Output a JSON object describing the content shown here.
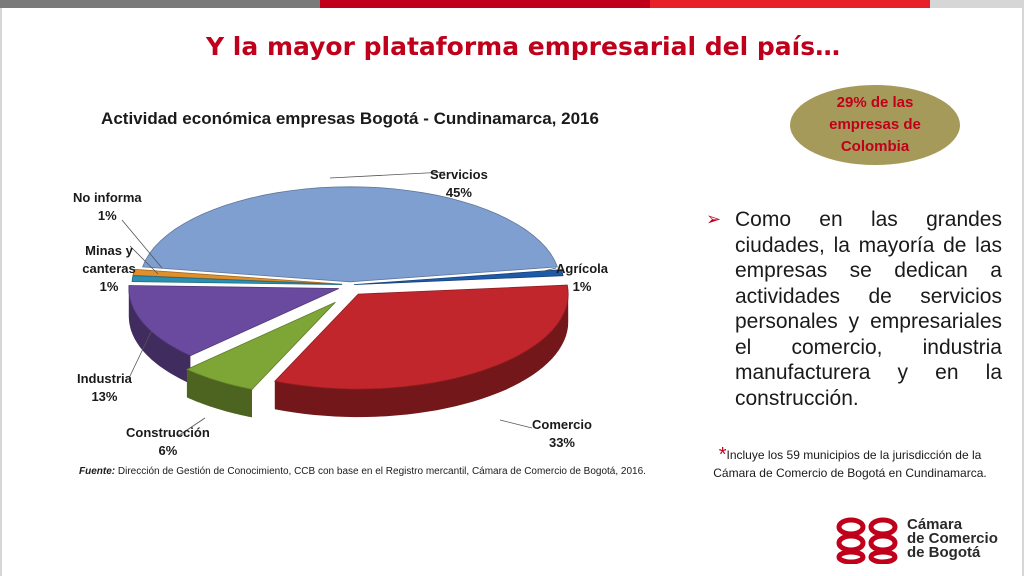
{
  "slide": {
    "title": "Y la mayor plataforma empresarial del país…",
    "topbar_colors": [
      "#7d7d7d",
      "#c0001b",
      "#e02020",
      "#d6d6d6"
    ]
  },
  "badge": {
    "text": "29%  de las empresas de Colombia"
  },
  "bullet": {
    "text": "Como en las grandes ciudades, la mayoría de las empresas se dedican a actividades de servicios personales y empresariales el comercio, industria manufacturera y en la construcción."
  },
  "note": {
    "star": "*",
    "text": "Incluye los 59 municipios de la jurisdicción de la Cámara de Comercio de Bogotá en Cundinamarca."
  },
  "source": {
    "label": "Fuente:",
    "text": " Dirección de Gestión de Conocimiento, CCB con base en el Registro mercantil, Cámara de Comercio  de Bogotá, 2016."
  },
  "logo": {
    "line1": "Cámara",
    "line2": "de Comercio",
    "line3": "de Bogotá"
  },
  "chart_data": {
    "type": "pie",
    "title": "Actividad económica empresas Bogotá - Cundinamarca, 2016",
    "categories": [
      "Servicios",
      "Agrícola",
      "Comercio",
      "Construcción",
      "Industria",
      "Minas y canteras",
      "No informa"
    ],
    "values": [
      45,
      1,
      33,
      6,
      13,
      1,
      1
    ],
    "labels": [
      "45%",
      "1%",
      "33%",
      "6%",
      "13%",
      "1%",
      "1%"
    ],
    "colors": [
      "#7f9fd0",
      "#1f5aa8",
      "#c0262b",
      "#7ea636",
      "#6a4a9e",
      "#2b8fb0",
      "#e0902a"
    ],
    "legend": "none"
  }
}
